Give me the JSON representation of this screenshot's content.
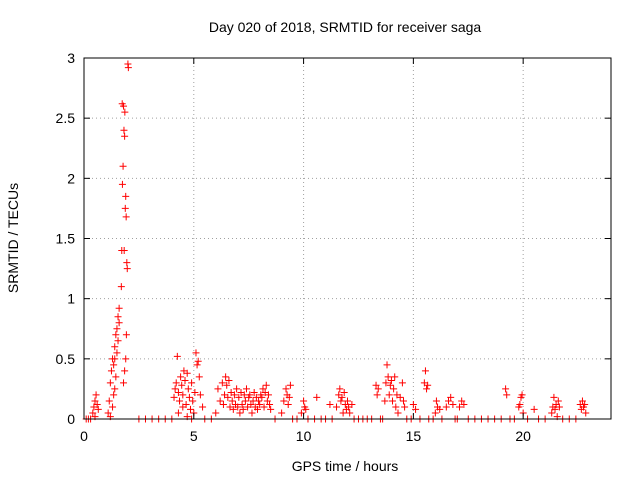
{
  "chart_data": {
    "type": "scatter",
    "title": "Day 020 of 2018, SRMTID for receiver saga",
    "xlabel": "GPS time / hours",
    "ylabel": "SRMTID / TECUs",
    "xlim": [
      0,
      24
    ],
    "ylim": [
      0,
      3
    ],
    "xticks": [
      0,
      5,
      10,
      15,
      20
    ],
    "yticks": [
      0,
      0.5,
      1,
      1.5,
      2,
      2.5,
      3
    ],
    "xtick_labels": [
      "0",
      "5",
      "10",
      "15",
      "20"
    ],
    "ytick_labels": [
      "0",
      "0.5",
      "1",
      "1.5",
      "2",
      "2.5",
      "3"
    ],
    "grid": true,
    "marker": "+",
    "color": "#ff0000",
    "series": [
      {
        "name": "SRMTID",
        "points": [
          [
            0.1,
            0.0
          ],
          [
            0.2,
            0.0
          ],
          [
            0.3,
            0.0
          ],
          [
            0.4,
            0.05
          ],
          [
            0.45,
            0.1
          ],
          [
            0.5,
            0.15
          ],
          [
            0.55,
            0.2
          ],
          [
            0.6,
            0.12
          ],
          [
            0.65,
            0.08
          ],
          [
            0.5,
            0.02
          ],
          [
            1.1,
            0.05
          ],
          [
            1.15,
            0.15
          ],
          [
            1.2,
            0.3
          ],
          [
            1.25,
            0.4
          ],
          [
            1.3,
            0.5
          ],
          [
            1.35,
            0.45
          ],
          [
            1.4,
            0.6
          ],
          [
            1.45,
            0.7
          ],
          [
            1.5,
            0.75
          ],
          [
            1.55,
            0.85
          ],
          [
            1.6,
            0.92
          ],
          [
            1.5,
            0.55
          ],
          [
            1.45,
            0.35
          ],
          [
            1.4,
            0.25
          ],
          [
            1.3,
            0.1
          ],
          [
            1.35,
            0.2
          ],
          [
            1.6,
            0.8
          ],
          [
            1.55,
            0.65
          ],
          [
            1.4,
            0.5
          ],
          [
            1.2,
            0.02
          ],
          [
            1.7,
            1.1
          ],
          [
            1.72,
            1.4
          ],
          [
            1.75,
            1.95
          ],
          [
            1.78,
            2.1
          ],
          [
            1.8,
            2.6
          ],
          [
            1.82,
            2.4
          ],
          [
            1.85,
            2.35
          ],
          [
            1.88,
            1.75
          ],
          [
            1.9,
            1.85
          ],
          [
            1.92,
            1.68
          ],
          [
            1.95,
            1.3
          ],
          [
            1.97,
            1.25
          ],
          [
            2.0,
            2.95
          ],
          [
            2.02,
            2.92
          ],
          [
            1.86,
            2.55
          ],
          [
            1.83,
            1.4
          ],
          [
            1.74,
            2.62
          ],
          [
            1.93,
            0.7
          ],
          [
            1.9,
            0.5
          ],
          [
            1.8,
            0.3
          ],
          [
            1.85,
            0.4
          ],
          [
            2.5,
            0.0
          ],
          [
            2.8,
            0.0
          ],
          [
            3.1,
            0.0
          ],
          [
            3.4,
            0.0
          ],
          [
            3.7,
            0.0
          ],
          [
            4.0,
            0.0
          ],
          [
            4.1,
            0.18
          ],
          [
            4.15,
            0.25
          ],
          [
            4.2,
            0.3
          ],
          [
            4.25,
            0.52
          ],
          [
            4.3,
            0.22
          ],
          [
            4.35,
            0.15
          ],
          [
            4.4,
            0.35
          ],
          [
            4.45,
            0.28
          ],
          [
            4.5,
            0.2
          ],
          [
            4.55,
            0.4
          ],
          [
            4.6,
            0.32
          ],
          [
            4.65,
            0.12
          ],
          [
            4.7,
            0.38
          ],
          [
            4.75,
            0.25
          ],
          [
            4.8,
            0.18
          ],
          [
            4.85,
            0.08
          ],
          [
            4.9,
            0.3
          ],
          [
            4.95,
            0.15
          ],
          [
            5.0,
            0.05
          ],
          [
            5.05,
            0.22
          ],
          [
            5.1,
            0.55
          ],
          [
            5.15,
            0.45
          ],
          [
            5.2,
            0.48
          ],
          [
            5.25,
            0.35
          ],
          [
            4.3,
            0.05
          ],
          [
            4.5,
            0.1
          ],
          [
            4.7,
            0.02
          ],
          [
            4.9,
            0.0
          ],
          [
            5.3,
            0.2
          ],
          [
            5.4,
            0.1
          ],
          [
            5.5,
            0.0
          ],
          [
            5.8,
            0.0
          ],
          [
            6.0,
            0.05
          ],
          [
            6.1,
            0.25
          ],
          [
            6.2,
            0.15
          ],
          [
            6.3,
            0.3
          ],
          [
            6.35,
            0.12
          ],
          [
            6.4,
            0.2
          ],
          [
            6.45,
            0.35
          ],
          [
            6.5,
            0.28
          ],
          [
            6.55,
            0.18
          ],
          [
            6.6,
            0.32
          ],
          [
            6.65,
            0.1
          ],
          [
            6.7,
            0.22
          ],
          [
            6.75,
            0.15
          ],
          [
            6.8,
            0.08
          ],
          [
            6.85,
            0.2
          ],
          [
            6.9,
            0.12
          ],
          [
            6.95,
            0.25
          ],
          [
            7.0,
            0.1
          ],
          [
            7.05,
            0.18
          ],
          [
            7.1,
            0.05
          ],
          [
            7.15,
            0.22
          ],
          [
            7.2,
            0.12
          ],
          [
            7.25,
            0.08
          ],
          [
            7.3,
            0.2
          ],
          [
            7.35,
            0.15
          ],
          [
            7.4,
            0.25
          ],
          [
            7.45,
            0.1
          ],
          [
            7.5,
            0.18
          ],
          [
            7.55,
            0.2
          ],
          [
            7.6,
            0.12
          ],
          [
            7.65,
            0.05
          ],
          [
            7.7,
            0.15
          ],
          [
            7.75,
            0.22
          ],
          [
            7.8,
            0.1
          ],
          [
            7.85,
            0.18
          ],
          [
            7.9,
            0.08
          ],
          [
            7.95,
            0.15
          ],
          [
            8.0,
            0.12
          ],
          [
            8.05,
            0.2
          ],
          [
            8.1,
            0.18
          ],
          [
            8.15,
            0.25
          ],
          [
            8.2,
            0.1
          ],
          [
            8.25,
            0.22
          ],
          [
            8.3,
            0.28
          ],
          [
            8.35,
            0.15
          ],
          [
            8.4,
            0.2
          ],
          [
            8.45,
            0.12
          ],
          [
            8.5,
            0.08
          ],
          [
            8.7,
            0.0
          ],
          [
            9.0,
            0.05
          ],
          [
            9.1,
            0.15
          ],
          [
            9.2,
            0.25
          ],
          [
            9.25,
            0.2
          ],
          [
            9.3,
            0.12
          ],
          [
            9.35,
            0.18
          ],
          [
            9.4,
            0.28
          ],
          [
            9.5,
            0.0
          ],
          [
            9.7,
            0.0
          ],
          [
            9.9,
            0.05
          ],
          [
            10.0,
            0.15
          ],
          [
            10.05,
            0.1
          ],
          [
            10.1,
            0.08
          ],
          [
            10.2,
            0.0
          ],
          [
            10.5,
            0.0
          ],
          [
            10.6,
            0.18
          ],
          [
            10.8,
            0.0
          ],
          [
            11.0,
            0.0
          ],
          [
            11.2,
            0.12
          ],
          [
            11.3,
            0.0
          ],
          [
            11.5,
            0.1
          ],
          [
            11.6,
            0.2
          ],
          [
            11.65,
            0.25
          ],
          [
            11.7,
            0.15
          ],
          [
            11.75,
            0.18
          ],
          [
            11.8,
            0.05
          ],
          [
            11.85,
            0.22
          ],
          [
            11.9,
            0.12
          ],
          [
            11.95,
            0.08
          ],
          [
            12.0,
            0.15
          ],
          [
            12.05,
            0.1
          ],
          [
            12.1,
            0.05
          ],
          [
            12.2,
            0.12
          ],
          [
            12.3,
            0.0
          ],
          [
            12.5,
            0.0
          ],
          [
            12.7,
            0.0
          ],
          [
            12.9,
            0.0
          ],
          [
            13.1,
            0.0
          ],
          [
            13.3,
            0.28
          ],
          [
            13.35,
            0.2
          ],
          [
            13.4,
            0.25
          ],
          [
            13.5,
            0.0
          ],
          [
            13.6,
            0.0
          ],
          [
            13.7,
            0.15
          ],
          [
            13.75,
            0.3
          ],
          [
            13.8,
            0.45
          ],
          [
            13.85,
            0.35
          ],
          [
            13.9,
            0.2
          ],
          [
            13.95,
            0.28
          ],
          [
            14.0,
            0.32
          ],
          [
            14.05,
            0.15
          ],
          [
            14.1,
            0.25
          ],
          [
            14.15,
            0.35
          ],
          [
            14.2,
            0.1
          ],
          [
            14.25,
            0.2
          ],
          [
            14.3,
            0.05
          ],
          [
            14.4,
            0.18
          ],
          [
            14.5,
            0.3
          ],
          [
            14.55,
            0.15
          ],
          [
            14.6,
            0.1
          ],
          [
            14.7,
            0.0
          ],
          [
            14.9,
            0.0
          ],
          [
            15.0,
            0.12
          ],
          [
            15.1,
            0.08
          ],
          [
            15.3,
            0.0
          ],
          [
            15.5,
            0.3
          ],
          [
            15.55,
            0.4
          ],
          [
            15.6,
            0.25
          ],
          [
            15.65,
            0.28
          ],
          [
            15.7,
            0.0
          ],
          [
            15.9,
            0.0
          ],
          [
            16.0,
            0.05
          ],
          [
            16.05,
            0.15
          ],
          [
            16.1,
            0.1
          ],
          [
            16.2,
            0.08
          ],
          [
            16.3,
            0.0
          ],
          [
            16.5,
            0.1
          ],
          [
            16.6,
            0.15
          ],
          [
            16.7,
            0.18
          ],
          [
            16.8,
            0.12
          ],
          [
            16.9,
            0.0
          ],
          [
            17.0,
            0.0
          ],
          [
            17.1,
            0.1
          ],
          [
            17.2,
            0.15
          ],
          [
            17.3,
            0.12
          ],
          [
            17.5,
            0.0
          ],
          [
            17.8,
            0.0
          ],
          [
            18.1,
            0.0
          ],
          [
            18.4,
            0.0
          ],
          [
            18.7,
            0.0
          ],
          [
            19.0,
            0.0
          ],
          [
            19.2,
            0.25
          ],
          [
            19.25,
            0.2
          ],
          [
            19.4,
            0.0
          ],
          [
            19.6,
            0.0
          ],
          [
            19.8,
            0.1
          ],
          [
            19.85,
            0.12
          ],
          [
            19.9,
            0.18
          ],
          [
            19.95,
            0.2
          ],
          [
            20.0,
            0.05
          ],
          [
            20.2,
            0.0
          ],
          [
            20.5,
            0.08
          ],
          [
            20.7,
            0.0
          ],
          [
            21.0,
            0.0
          ],
          [
            21.3,
            0.05
          ],
          [
            21.35,
            0.1
          ],
          [
            21.4,
            0.18
          ],
          [
            21.45,
            0.08
          ],
          [
            21.5,
            0.12
          ],
          [
            21.55,
            0.02
          ],
          [
            21.6,
            0.15
          ],
          [
            21.65,
            0.1
          ],
          [
            21.8,
            0.0
          ],
          [
            22.1,
            0.0
          ],
          [
            22.4,
            0.0
          ],
          [
            22.6,
            0.12
          ],
          [
            22.65,
            0.08
          ],
          [
            22.7,
            0.15
          ],
          [
            22.75,
            0.1
          ],
          [
            22.8,
            0.12
          ],
          [
            22.85,
            0.05
          ]
        ]
      }
    ]
  }
}
